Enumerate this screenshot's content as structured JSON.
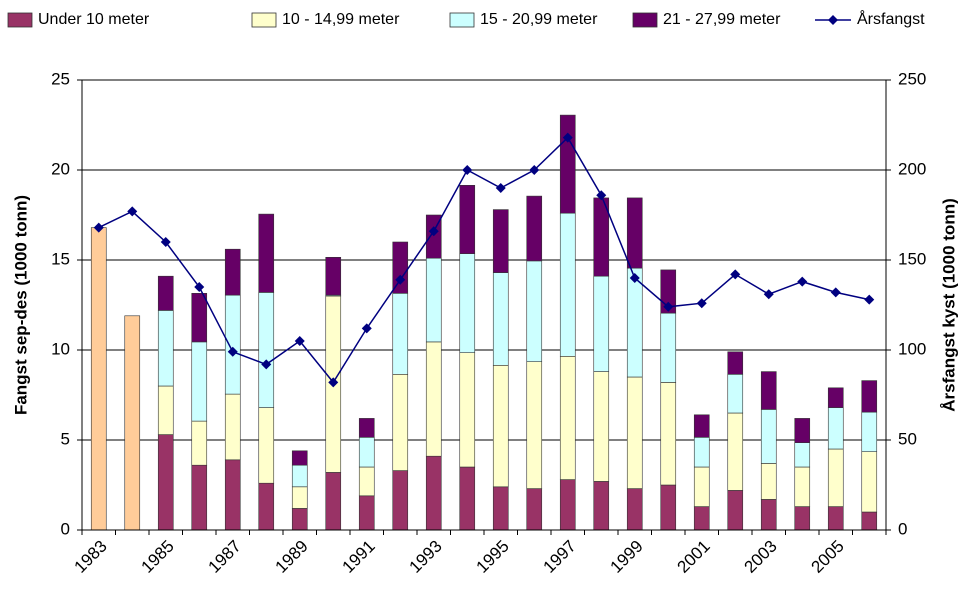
{
  "chart_data": {
    "type": "bar",
    "stacked": true,
    "categories": [
      "1983",
      null,
      "1985",
      null,
      "1987",
      null,
      "1989",
      null,
      "1991",
      null,
      "1993",
      null,
      "1995",
      null,
      "1997",
      null,
      "1999",
      null,
      "2001",
      null,
      "2003",
      null,
      "2005",
      null
    ],
    "series": [
      {
        "name": "Under 10 meter",
        "color": "#993366",
        "values": [
          null,
          null,
          5.3,
          3.6,
          3.9,
          2.6,
          1.2,
          3.2,
          1.9,
          3.3,
          4.1,
          3.5,
          2.4,
          2.3,
          2.8,
          2.7,
          2.3,
          2.5,
          1.3,
          2.2,
          1.7,
          1.3,
          1.3,
          1.0
        ]
      },
      {
        "name": "10 - 14,99 meter",
        "color": "#ffffcc",
        "values": [
          null,
          null,
          2.7,
          2.45,
          3.65,
          4.2,
          1.2,
          9.8,
          1.6,
          5.35,
          6.35,
          6.35,
          6.75,
          7.05,
          6.85,
          6.1,
          6.2,
          5.7,
          2.2,
          4.3,
          2.0,
          2.2,
          3.2,
          3.35
        ]
      },
      {
        "name": "15 - 20,99 meter",
        "color": "#ccffff",
        "values": [
          null,
          null,
          4.2,
          4.4,
          5.5,
          6.4,
          1.2,
          0.05,
          1.65,
          4.5,
          4.65,
          5.5,
          5.15,
          5.6,
          7.95,
          5.3,
          6.05,
          3.85,
          1.65,
          2.15,
          3.0,
          1.35,
          2.3,
          2.2
        ]
      },
      {
        "name": "21 - 27,99 meter",
        "color": "#660066",
        "values": [
          null,
          null,
          1.9,
          2.7,
          2.55,
          4.35,
          0.8,
          2.1,
          1.05,
          2.85,
          2.4,
          3.8,
          3.5,
          3.6,
          5.45,
          4.35,
          3.9,
          2.4,
          1.25,
          1.25,
          2.1,
          1.35,
          1.1,
          1.75
        ]
      },
      {
        "name": "Årsfangst",
        "color": "#000080",
        "type": "line",
        "axis": "y2",
        "values": [
          168,
          177,
          160,
          135,
          99,
          92,
          105,
          82,
          112,
          139,
          166,
          200,
          190,
          200,
          218,
          186,
          140,
          124,
          126,
          142,
          131,
          138,
          132,
          128
        ]
      },
      {
        "color": "#ffcc99",
        "values": [
          16.8,
          11.9,
          null,
          null,
          null,
          null,
          null,
          null,
          null,
          null,
          null,
          null,
          null,
          null,
          null,
          null,
          null,
          null,
          null,
          null,
          null,
          null,
          null,
          null
        ]
      }
    ],
    "y_label": "Fangst sep-des (1000 tonn)",
    "y2_label": "Årsfangst kyst (1000 tonn)",
    "ylim": [
      0,
      25
    ],
    "yticks": [
      0,
      5,
      10,
      15,
      20,
      25
    ],
    "y2lim": [
      0,
      250
    ],
    "y2ticks": [
      0,
      50,
      100,
      150,
      200,
      250
    ],
    "grid": true,
    "legend": "top"
  }
}
